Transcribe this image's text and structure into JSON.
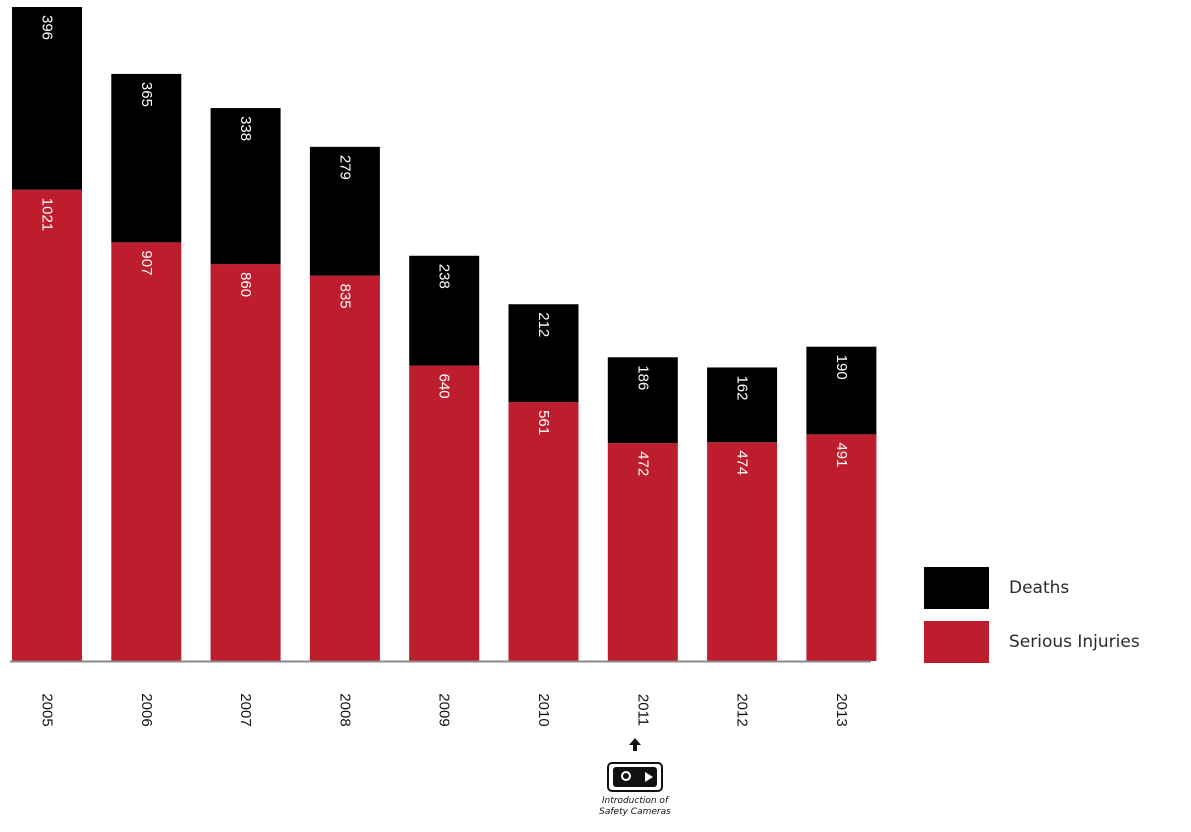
{
  "chart_data": {
    "type": "bar",
    "stacked": true,
    "categories": [
      "2005",
      "2006",
      "2007",
      "2008",
      "2009",
      "2010",
      "2011",
      "2012",
      "2013"
    ],
    "series": [
      {
        "name": "Serious Injuries",
        "color": "#bd1d2d",
        "values": [
          1021,
          907,
          860,
          835,
          640,
          561,
          472,
          474,
          491
        ]
      },
      {
        "name": "Deaths",
        "color": "#000000",
        "values": [
          396,
          365,
          338,
          279,
          238,
          212,
          186,
          162,
          190
        ]
      }
    ],
    "ylim": [
      0,
      1417
    ],
    "grid": false,
    "legend_placement": "bottom-right",
    "data_labels": "inside-bars-rotated",
    "annotation": {
      "category": "2011",
      "icon": "safety-camera-icon",
      "text_line1": "Introduction of",
      "text_line2": "Safety Cameras"
    }
  },
  "legend": {
    "deaths_label": "Deaths",
    "injuries_label": "Serious Injuries"
  }
}
